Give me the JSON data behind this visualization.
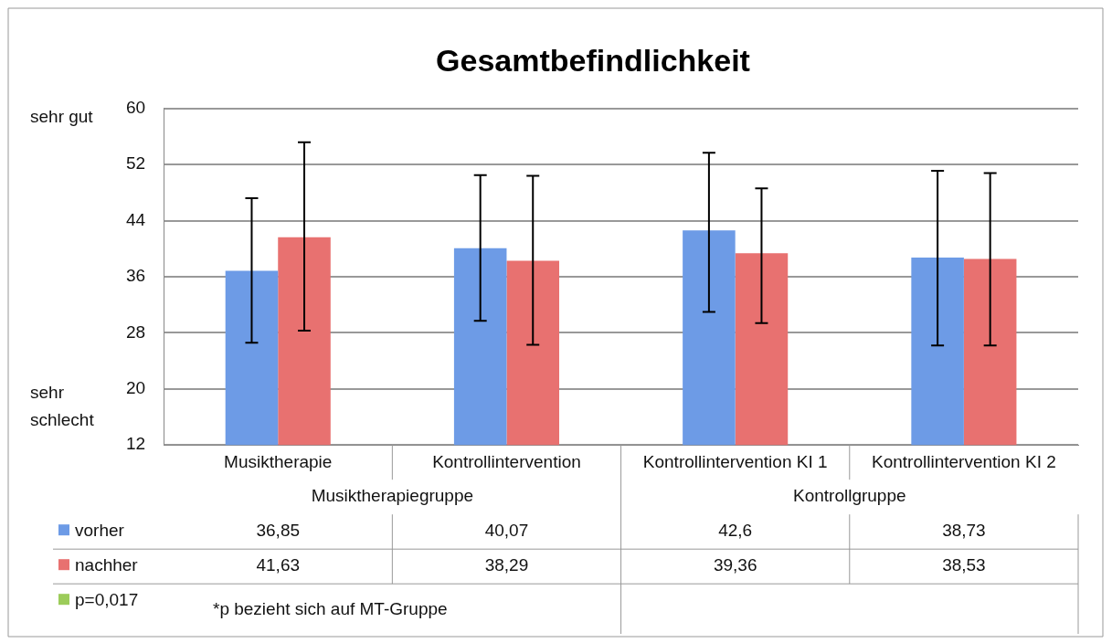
{
  "chart_data": {
    "type": "bar",
    "title": "Gesamtbefindlichkeit",
    "categories": [
      "Musiktherapie",
      "Kontrollintervention",
      "Kontrollintervention KI 1",
      "Kontrollintervention KI 2"
    ],
    "ylim": [
      12,
      60
    ],
    "yticks": [
      12,
      20,
      28,
      36,
      44,
      52,
      60
    ],
    "grid": "y",
    "legend": "bottom left",
    "series": [
      {
        "name": "vorher",
        "color": "#6d9be6",
        "values": [
          36.85,
          40.07,
          42.6,
          38.73
        ],
        "value_labels": [
          "36,85",
          "40,07",
          "42,6",
          "38,73"
        ],
        "errors": [
          [
            26.6,
            47.2
          ],
          [
            29.7,
            50.5
          ],
          [
            31.0,
            53.7
          ],
          [
            26.2,
            51.1
          ]
        ]
      },
      {
        "name": "nachher",
        "color": "#e87170",
        "values": [
          41.63,
          38.29,
          39.36,
          38.53
        ],
        "value_labels": [
          "41,63",
          "38,29",
          "39,36",
          "38,53"
        ],
        "errors": [
          [
            28.3,
            55.2
          ],
          [
            26.3,
            50.4
          ],
          [
            29.4,
            48.6
          ],
          [
            26.2,
            50.8
          ]
        ]
      },
      {
        "name": "p=0,017",
        "color": "#9ccc5a",
        "values": [
          null,
          null,
          null,
          null
        ]
      }
    ],
    "annotations": [
      "sehr gut",
      "sehr schlecht",
      "Musiktherapiegruppe",
      "Kontrollgruppe",
      "*p bezieht sich auf MT-Gruppe"
    ]
  }
}
